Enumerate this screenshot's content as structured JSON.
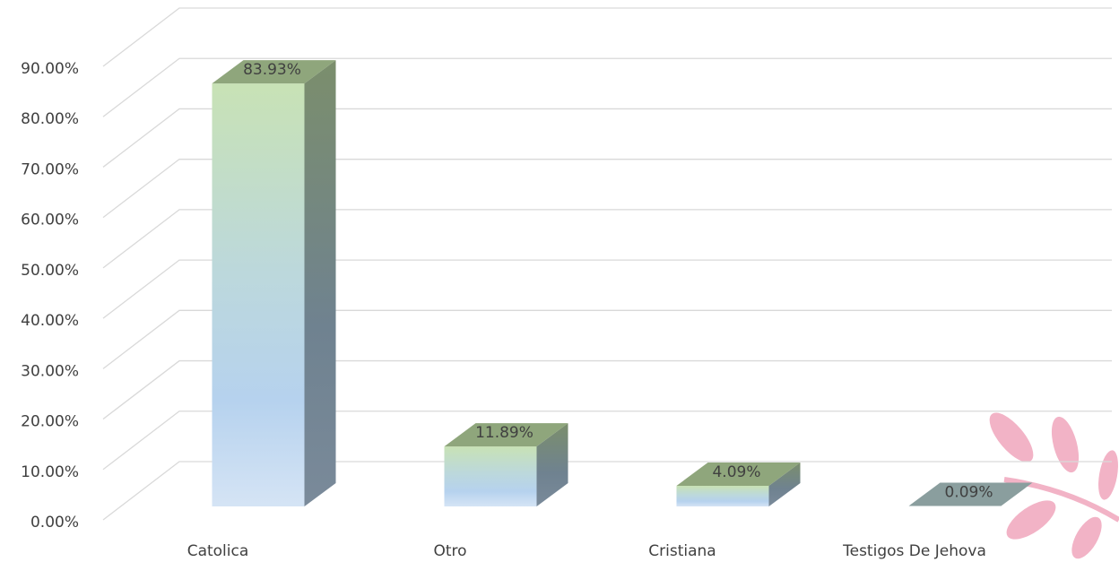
{
  "chart_data": {
    "type": "bar3d",
    "categories": [
      "Catolica",
      "Otro",
      "Cristiana",
      "Testigos De Jehova"
    ],
    "values": [
      83.93,
      11.89,
      4.09,
      0.09
    ],
    "value_labels": [
      "83.93%",
      "11.89%",
      "4.09%",
      "0.09%"
    ],
    "ylim": [
      0,
      90
    ],
    "yticks": [
      {
        "value": 0,
        "label": "0.00%"
      },
      {
        "value": 10,
        "label": "10.00%"
      },
      {
        "value": 20,
        "label": "20.00%"
      },
      {
        "value": 30,
        "label": "30.00%"
      },
      {
        "value": 40,
        "label": "40.00%"
      },
      {
        "value": 50,
        "label": "50.00%"
      },
      {
        "value": 60,
        "label": "60.00%"
      },
      {
        "value": 70,
        "label": "70.00%"
      },
      {
        "value": 80,
        "label": "80.00%"
      },
      {
        "value": 90,
        "label": "90.00%"
      }
    ],
    "grid": true
  }
}
